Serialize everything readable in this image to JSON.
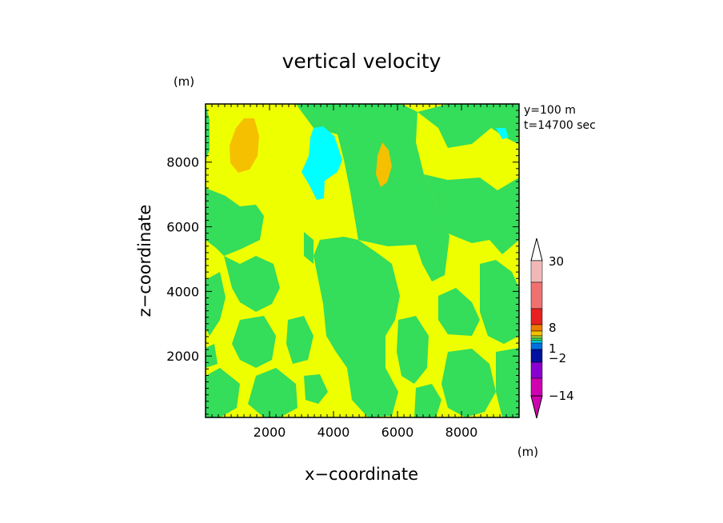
{
  "chart_data": {
    "type": "heatmap",
    "title": "vertical velocity",
    "xlabel": "x−coordinate",
    "ylabel": "z−coordinate",
    "x_unit": "(m)",
    "y_unit": "(m)",
    "annotations": [
      "y=100  m",
      "t=14700 sec"
    ],
    "xlim": [
      0,
      9800
    ],
    "ylim": [
      100,
      9800
    ],
    "xticks": [
      "2000",
      "4000",
      "6000",
      "8000"
    ],
    "yticks": [
      "2000",
      "4000",
      "6000",
      "8000"
    ],
    "colorbar": {
      "unit": "(m)",
      "labels": [
        "30",
        "8",
        "1",
        "−2",
        "−14"
      ],
      "colors": [
        "#f2b8b8",
        "#f07070",
        "#e82020",
        "#f07a00",
        "#f5c000",
        "#a0d840",
        "#34dd5a",
        "#00e0ff",
        "#0070e0",
        "#0010a0",
        "#8a00d0",
        "#d000b0"
      ]
    },
    "field": {
      "background": "#eeff00",
      "regions": [
        {
          "level": "green",
          "color": "#34dd5a",
          "x": [
            0,
            350,
            900,
            2200,
            2800,
            3000,
            3300,
            3600,
            4000,
            5200,
            6000,
            6400,
            7200,
            8000,
            9200,
            9800
          ],
          "z": [
            300,
            2500,
            7000,
            9600,
            3000,
            1200,
            5800,
            5200,
            800,
            3500,
            6200,
            2600,
            9700,
            4200,
            6000,
            1500
          ]
        },
        {
          "level": "orange",
          "color": "#f5c000",
          "x": [
            800,
            1500,
            5700
          ],
          "z": [
            7900,
            8800,
            7900
          ]
        },
        {
          "level": "cyan",
          "color": "#00ffff",
          "x": [
            3700,
            9100
          ],
          "z": [
            7800,
            9300
          ]
        }
      ]
    }
  }
}
